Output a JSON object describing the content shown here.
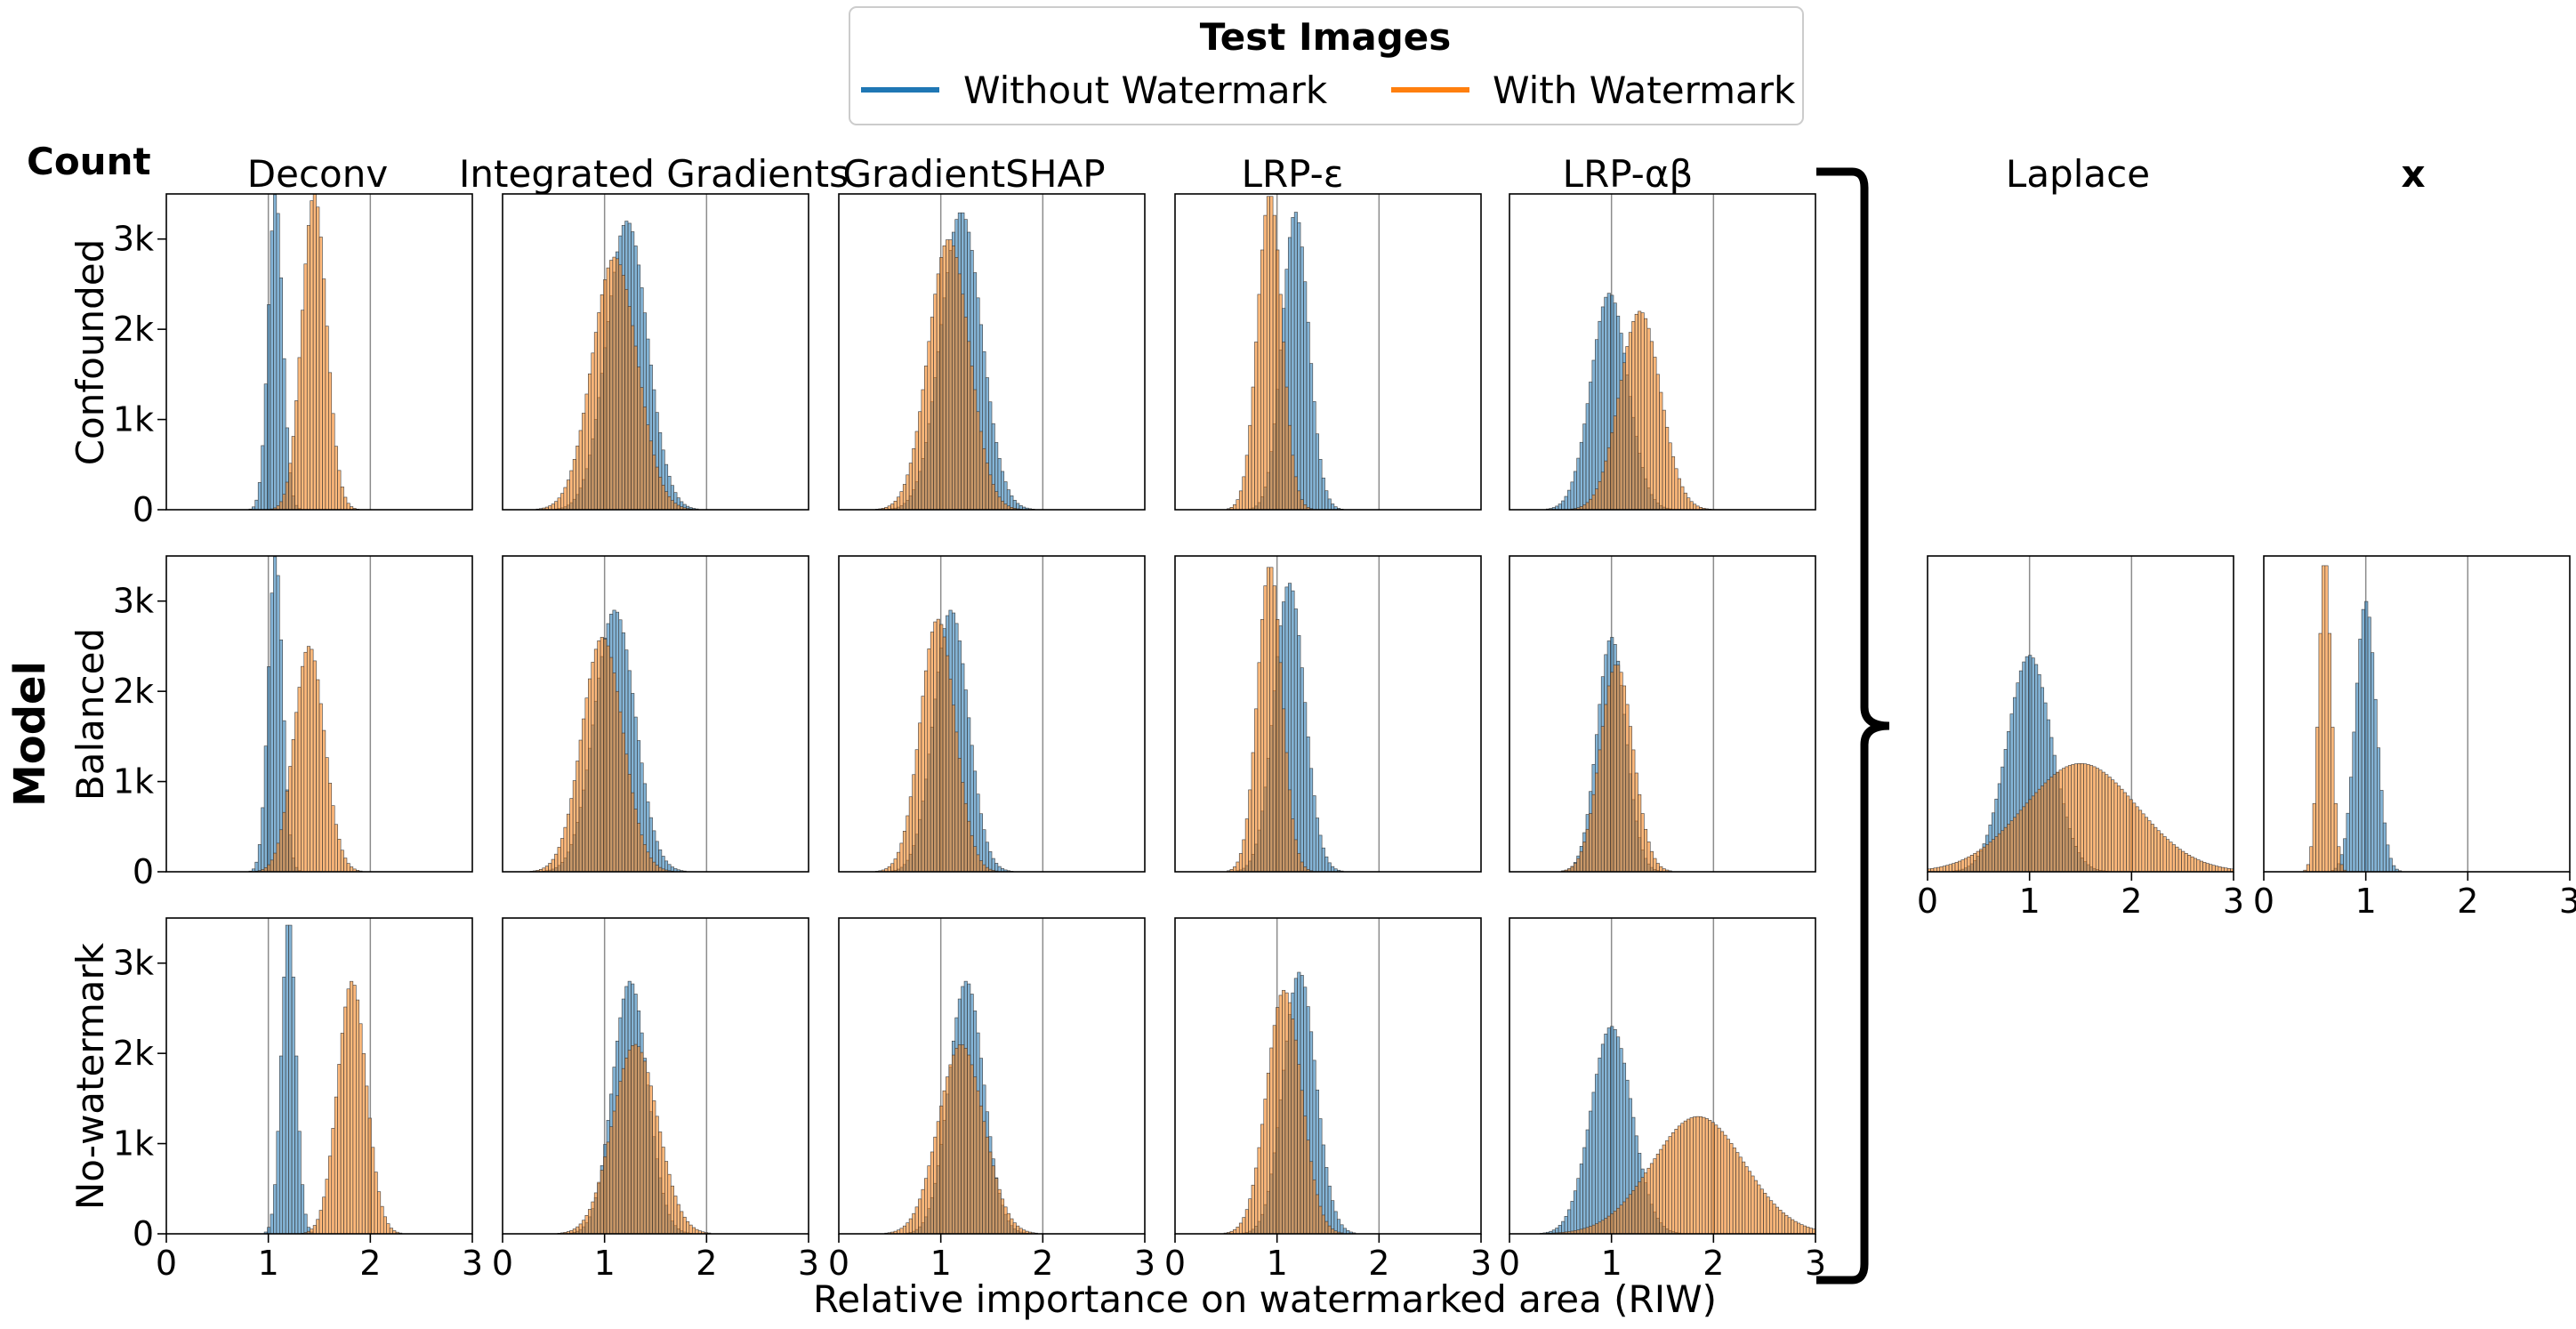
{
  "legend": {
    "title": "Test Images",
    "entries": [
      {
        "label": "Without Watermark",
        "color": "#1f77b4"
      },
      {
        "label": "With Watermark",
        "color": "#ff7f0e"
      }
    ]
  },
  "ylabel_top": "Count",
  "row_group_label": "Model",
  "xlabel": "Relative importance on watermarked area (RIW)",
  "methods": [
    "Deconv",
    "Integrated Gradients",
    "GradientSHAP",
    "LRP-ε",
    "LRP-αβ",
    "Laplace",
    "x"
  ],
  "models": [
    "Confounded",
    "Balanced",
    "No-watermark"
  ],
  "chart_data": {
    "type": "histogram-grid",
    "title": "",
    "xlim": [
      0,
      3
    ],
    "ylim": [
      0,
      3500
    ],
    "xticks": [
      0,
      1,
      2,
      3
    ],
    "xtick_labels": [
      "0",
      "1",
      "2",
      "3"
    ],
    "yticks": [
      0,
      1000,
      2000,
      3000
    ],
    "ytick_labels": [
      "0",
      "1k",
      "2k",
      "3k"
    ],
    "reference_lines_x": [
      1,
      2
    ],
    "bins": 100,
    "series_names": [
      "Without Watermark",
      "With Watermark"
    ],
    "series_colors": [
      "#1f77b4",
      "#ff7f0e"
    ],
    "panels": [
      {
        "model": "Confounded",
        "method": "Deconv",
        "without": {
          "mean": 1.07,
          "sd": 0.07,
          "peak": 3500
        },
        "with": {
          "mean": 1.45,
          "sd": 0.12,
          "peak": 3500
        }
      },
      {
        "model": "Confounded",
        "method": "Integrated Gradients",
        "without": {
          "mean": 1.22,
          "sd": 0.2,
          "peak": 3200
        },
        "with": {
          "mean": 1.1,
          "sd": 0.22,
          "peak": 2800
        }
      },
      {
        "model": "Confounded",
        "method": "GradientSHAP",
        "without": {
          "mean": 1.2,
          "sd": 0.2,
          "peak": 3300
        },
        "with": {
          "mean": 1.08,
          "sd": 0.2,
          "peak": 3000
        }
      },
      {
        "model": "Confounded",
        "method": "LRP-ε",
        "without": {
          "mean": 1.18,
          "sd": 0.13,
          "peak": 3300
        },
        "with": {
          "mean": 0.93,
          "sd": 0.12,
          "peak": 3500
        }
      },
      {
        "model": "Confounded",
        "method": "LRP-αβ",
        "without": {
          "mean": 0.98,
          "sd": 0.18,
          "peak": 2400
        },
        "with": {
          "mean": 1.28,
          "sd": 0.2,
          "peak": 2200
        }
      },
      {
        "model": "Balanced",
        "method": "Deconv",
        "without": {
          "mean": 1.07,
          "sd": 0.07,
          "peak": 3500
        },
        "with": {
          "mean": 1.4,
          "sd": 0.15,
          "peak": 2500
        }
      },
      {
        "model": "Balanced",
        "method": "Integrated Gradients",
        "without": {
          "mean": 1.1,
          "sd": 0.2,
          "peak": 2900
        },
        "with": {
          "mean": 0.98,
          "sd": 0.2,
          "peak": 2600
        }
      },
      {
        "model": "Balanced",
        "method": "GradientSHAP",
        "without": {
          "mean": 1.1,
          "sd": 0.17,
          "peak": 2900
        },
        "with": {
          "mean": 0.97,
          "sd": 0.17,
          "peak": 2800
        }
      },
      {
        "model": "Balanced",
        "method": "LRP-ε",
        "without": {
          "mean": 1.12,
          "sd": 0.15,
          "peak": 3200
        },
        "with": {
          "mean": 0.93,
          "sd": 0.12,
          "peak": 3400
        }
      },
      {
        "model": "Balanced",
        "method": "LRP-αβ",
        "without": {
          "mean": 1.0,
          "sd": 0.14,
          "peak": 2600
        },
        "with": {
          "mean": 1.05,
          "sd": 0.16,
          "peak": 2300
        }
      },
      {
        "model": "No-watermark",
        "method": "Deconv",
        "without": {
          "mean": 1.2,
          "sd": 0.07,
          "peak": 3500
        },
        "with": {
          "mean": 1.82,
          "sd": 0.14,
          "peak": 2800
        }
      },
      {
        "model": "No-watermark",
        "method": "Integrated Gradients",
        "without": {
          "mean": 1.25,
          "sd": 0.17,
          "peak": 2800
        },
        "with": {
          "mean": 1.3,
          "sd": 0.22,
          "peak": 2100
        }
      },
      {
        "model": "No-watermark",
        "method": "GradientSHAP",
        "without": {
          "mean": 1.25,
          "sd": 0.17,
          "peak": 2800
        },
        "with": {
          "mean": 1.2,
          "sd": 0.22,
          "peak": 2100
        }
      },
      {
        "model": "No-watermark",
        "method": "LRP-ε",
        "without": {
          "mean": 1.22,
          "sd": 0.16,
          "peak": 2900
        },
        "with": {
          "mean": 1.07,
          "sd": 0.17,
          "peak": 2700
        }
      },
      {
        "model": "No-watermark",
        "method": "LRP-αβ",
        "without": {
          "mean": 1.0,
          "sd": 0.2,
          "peak": 2300
        },
        "with": {
          "mean": 1.85,
          "sd": 0.45,
          "peak": 1300
        }
      },
      {
        "model": "Balanced",
        "method": "Laplace",
        "without": {
          "mean": 1.0,
          "sd": 0.22,
          "peak": 2400
        },
        "with": {
          "mean": 1.5,
          "sd": 0.55,
          "peak": 1200
        }
      },
      {
        "model": "Balanced",
        "method": "x",
        "without": {
          "mean": 1.0,
          "sd": 0.1,
          "peak": 3000
        },
        "with": {
          "mean": 0.6,
          "sd": 0.06,
          "peak": 3500
        }
      }
    ]
  }
}
